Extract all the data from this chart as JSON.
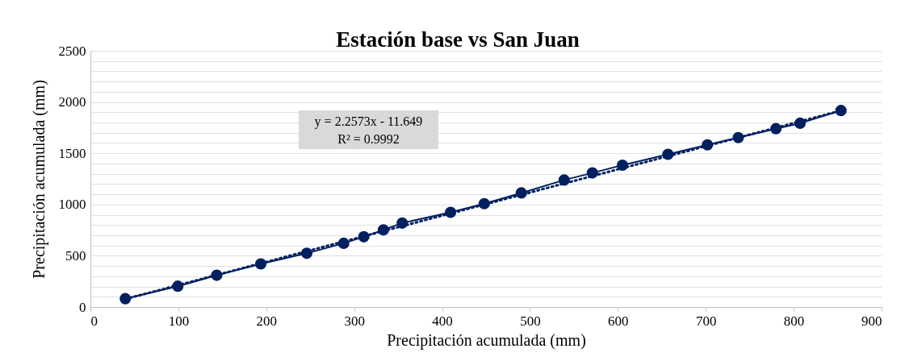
{
  "chart_data": {
    "type": "scatter",
    "title": "Estación base vs San Juan",
    "xlabel": "Precipitación acumulada (mm)",
    "ylabel": "Precipitación acumulada (mm)",
    "annotations": [
      "y = 2.2573x - 11.649",
      "R² = 0.9992"
    ],
    "series": [
      {
        "type": "line",
        "color": "#002060",
        "marker": "circle",
        "line_style": "solid",
        "x": [
          39.7,
          99.4,
          143.7,
          193.8,
          246.1,
          288.1,
          311,
          333.3,
          354.7,
          409.7,
          448,
          490.2,
          538.9,
          571,
          605.2,
          657,
          701.9,
          737,
          779.8,
          807.3,
          853.8
        ],
        "values": [
          81,
          203,
          310,
          421,
          524,
          622,
          685,
          753,
          819,
          924,
          1008,
          1113,
          1239,
          1308,
          1384,
          1490,
          1582,
          1653,
          1740,
          1793,
          1917
        ]
      },
      {
        "type": "line",
        "color": "#002060",
        "marker": "none",
        "line_style": "dotted",
        "x": [
          39.7,
          853.8
        ],
        "values": [
          78,
          1916
        ]
      }
    ],
    "xlim": [
      0,
      900
    ],
    "xticks": [
      0,
      100,
      200,
      300,
      400,
      500,
      600,
      700,
      800,
      900
    ],
    "ylim": [
      0,
      2500
    ],
    "yticks": [
      0,
      {
        "value": 100,
        "label": null
      },
      {
        "value": 200,
        "label": null
      },
      {
        "value": 300,
        "label": null
      },
      {
        "value": 400,
        "label": null
      },
      500,
      {
        "value": 600,
        "label": null
      },
      {
        "value": 700,
        "label": null
      },
      {
        "value": 800,
        "label": null
      },
      {
        "value": 900,
        "label": null
      },
      1000,
      {
        "value": 1100,
        "label": null
      },
      {
        "value": 1200,
        "label": null
      },
      {
        "value": 1300,
        "label": null
      },
      {
        "value": 1400,
        "label": null
      },
      1500,
      {
        "value": 1600,
        "label": null
      },
      {
        "value": 1700,
        "label": null
      },
      {
        "value": 1800,
        "label": null
      },
      {
        "value": 1900,
        "label": null
      },
      2000,
      {
        "value": 2100,
        "label": null
      },
      {
        "value": 2200,
        "label": null
      },
      {
        "value": 2300,
        "label": null
      },
      {
        "value": 2400,
        "label": null
      },
      2500
    ],
    "grid": "y",
    "legend": false
  }
}
